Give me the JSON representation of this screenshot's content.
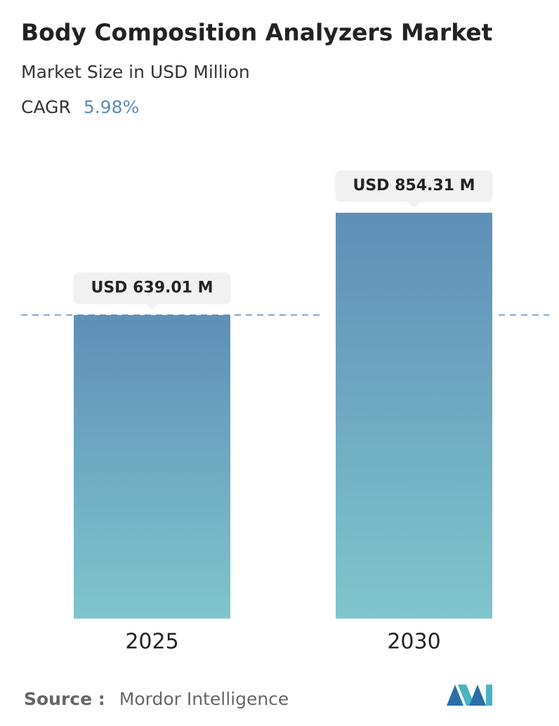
{
  "chart_data": {
    "type": "bar",
    "title": "Body Composition Analyzers Market",
    "subtitle": "Market Size in USD Million",
    "cagr_label": "CAGR",
    "cagr_value": "5.98%",
    "categories": [
      "2025",
      "2030"
    ],
    "values": [
      639.01,
      854.31
    ],
    "value_labels": [
      "USD 639.01 M",
      "USD 854.31 M"
    ],
    "source_label": "Source :",
    "source": "Mordor Intelligence"
  }
}
